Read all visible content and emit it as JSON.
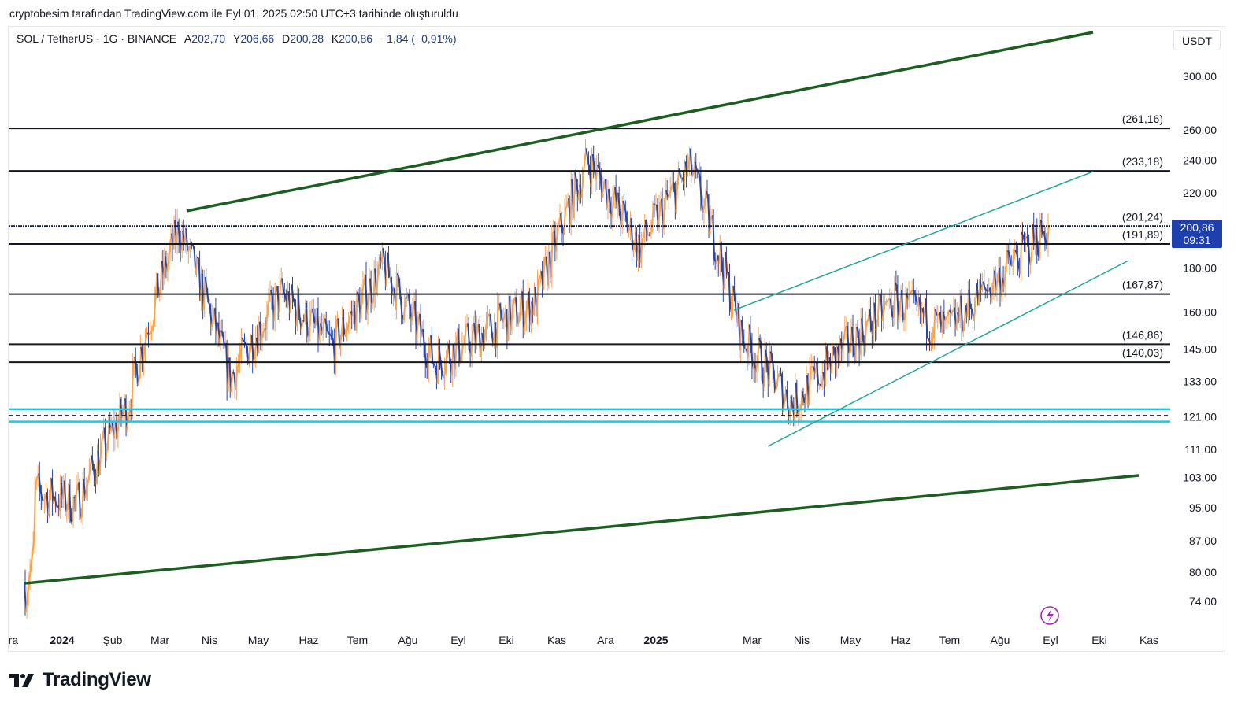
{
  "caption": "cryptobesim tarafından TradingView.com ile Eyl 01, 2025 02:50 UTC+3 tarihinde oluşturuldu",
  "symbol": {
    "name": "SOL / TetherUS · 1G · BINANCE",
    "open_label": "A",
    "open": "202,70",
    "high_label": "Y",
    "high": "206,66",
    "low_label": "D",
    "low": "200,28",
    "close_label": "K",
    "close": "200,86",
    "change": "−1,84 (−0,91%)"
  },
  "currency": "USDT",
  "last_price": {
    "value": "200,86",
    "countdown": "09:31"
  },
  "brand": "TradingView",
  "colors": {
    "up": "#f7a350",
    "down": "#2a45a6",
    "channel": "#1b5e20",
    "inner_channel": "#26a69a",
    "level": "#131722",
    "support_zone": "#26c6da",
    "badge": "#1e40af"
  },
  "chart_data": {
    "type": "candlestick",
    "title": "SOL / TetherUS · 1G · BINANCE",
    "x_axis_labels": [
      "ra",
      "2024",
      "Şub",
      "Mar",
      "Nis",
      "May",
      "Haz",
      "Tem",
      "Ağu",
      "Eyl",
      "Eki",
      "Kas",
      "Ara",
      "2025",
      "Mar",
      "Nis",
      "May",
      "Haz",
      "Tem",
      "Ağu",
      "Eyl",
      "Eki",
      "Kas"
    ],
    "y_axis_scale": "log",
    "y_ticks": [
      "300,00",
      "260,00",
      "240,00",
      "220,00",
      "180,00",
      "160,00",
      "145,00",
      "133,00",
      "121,00",
      "111,00",
      "103,00",
      "95,00",
      "87,00",
      "80,00",
      "74,00"
    ],
    "ylim": [
      68,
      330
    ],
    "horizontal_levels": [
      {
        "label": "(261,16)",
        "value": 261.16
      },
      {
        "label": "(233,18)",
        "value": 233.18
      },
      {
        "label": "(201,24)",
        "value": 201.24
      },
      {
        "label": "(191,89)",
        "value": 191.89
      },
      {
        "label": "(167,87)",
        "value": 167.87
      },
      {
        "label": "(146,86)",
        "value": 146.86
      },
      {
        "label": "(140,03)",
        "value": 140.03
      }
    ],
    "support_zone": {
      "upper": 123.5,
      "lower": 119.5,
      "mid": 121.5
    },
    "monthly_path": [
      {
        "month": "2023-12",
        "close": 100
      },
      {
        "month": "2024-01",
        "close": 96
      },
      {
        "month": "2024-02",
        "close": 125
      },
      {
        "month": "2024-03",
        "close": 200
      },
      {
        "month": "2024-04",
        "close": 134
      },
      {
        "month": "2024-05",
        "close": 168
      },
      {
        "month": "2024-06",
        "close": 146
      },
      {
        "month": "2024-07",
        "close": 180
      },
      {
        "month": "2024-08",
        "close": 140
      },
      {
        "month": "2024-09",
        "close": 152
      },
      {
        "month": "2024-10",
        "close": 165
      },
      {
        "month": "2024-11",
        "close": 240
      },
      {
        "month": "2024-12",
        "close": 190
      },
      {
        "month": "2025-01",
        "close": 235
      },
      {
        "month": "2025-02",
        "close": 150
      },
      {
        "month": "2025-03",
        "close": 125
      },
      {
        "month": "2025-04",
        "close": 145
      },
      {
        "month": "2025-05",
        "close": 165
      },
      {
        "month": "2025-06",
        "close": 152
      },
      {
        "month": "2025-07",
        "close": 175
      },
      {
        "month": "2025-08",
        "close": 200.86
      }
    ]
  }
}
